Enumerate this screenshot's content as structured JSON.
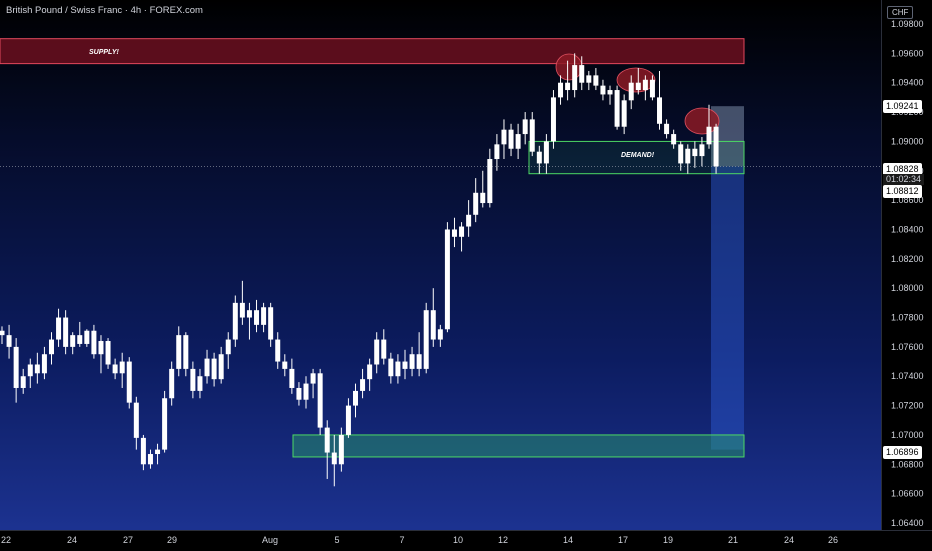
{
  "header": {
    "symbol_title": "British Pound / Swiss Franc · 4h · FOREX.com",
    "currency": "CHF"
  },
  "colors": {
    "candle_body": "#ffffff",
    "supply_fill": "#6b0f1e",
    "supply_border": "#e0485c",
    "demand_border": "#4cd964",
    "highlight_circle": "#8b1a24"
  },
  "annotations": {
    "supply_label": "SUPPLY!",
    "demand_label": "DEMAND!"
  },
  "price_tags": {
    "top_price": "1.09241",
    "current_price": "1.08828",
    "countdown": "01:02:34",
    "low_price": "1.08812",
    "target_price": "1.06896"
  },
  "chart_data": {
    "type": "candlestick",
    "y_axis_ticks": [
      "1.09800",
      "1.09600",
      "1.09400",
      "1.09200",
      "1.09000",
      "1.08800",
      "1.08600",
      "1.08400",
      "1.08200",
      "1.08000",
      "1.07800",
      "1.07600",
      "1.07400",
      "1.07200",
      "1.07000",
      "1.06800",
      "1.06600",
      "1.06400"
    ],
    "x_axis_ticks": [
      "22",
      "24",
      "27",
      "29",
      "Aug",
      "5",
      "7",
      "10",
      "12",
      "14",
      "17",
      "19",
      "21",
      "24",
      "26"
    ],
    "ylim": [
      1.0635,
      1.0995
    ],
    "zones": {
      "supply": [
        1.0953,
        1.097
      ],
      "demand": [
        1.0878,
        1.09
      ],
      "lower_demand": [
        1.0685,
        1.07
      ]
    },
    "short_position": {
      "entry": 1.0883,
      "stop": 1.0924,
      "target": 1.069
    },
    "candles": [
      [
        1.0771,
        1.0774,
        1.0762,
        1.0768
      ],
      [
        1.0768,
        1.0775,
        1.0752,
        1.076
      ],
      [
        1.076,
        1.0766,
        1.0722,
        1.0732
      ],
      [
        1.0732,
        1.0745,
        1.0728,
        1.074
      ],
      [
        1.074,
        1.0752,
        1.0732,
        1.0748
      ],
      [
        1.0748,
        1.0756,
        1.0735,
        1.0742
      ],
      [
        1.0742,
        1.076,
        1.0738,
        1.0755
      ],
      [
        1.0755,
        1.077,
        1.0748,
        1.0765
      ],
      [
        1.0765,
        1.0786,
        1.076,
        1.078
      ],
      [
        1.078,
        1.0785,
        1.0755,
        1.076
      ],
      [
        1.076,
        1.077,
        1.0755,
        1.0768
      ],
      [
        1.0768,
        1.0777,
        1.076,
        1.0762
      ],
      [
        1.0762,
        1.0772,
        1.076,
        1.0771
      ],
      [
        1.0771,
        1.0775,
        1.0752,
        1.0755
      ],
      [
        1.0755,
        1.0768,
        1.0742,
        1.0764
      ],
      [
        1.0764,
        1.0766,
        1.0745,
        1.0748
      ],
      [
        1.0748,
        1.0752,
        1.0738,
        1.0742
      ],
      [
        1.0742,
        1.0756,
        1.0732,
        1.075
      ],
      [
        1.075,
        1.0753,
        1.0718,
        1.0722
      ],
      [
        1.0722,
        1.0726,
        1.069,
        1.0698
      ],
      [
        1.0698,
        1.07,
        1.0676,
        1.068
      ],
      [
        1.068,
        1.069,
        1.0677,
        1.0687
      ],
      [
        1.0687,
        1.0694,
        1.068,
        1.069
      ],
      [
        1.069,
        1.073,
        1.0688,
        1.0725
      ],
      [
        1.0725,
        1.075,
        1.072,
        1.0745
      ],
      [
        1.0745,
        1.0774,
        1.074,
        1.0768
      ],
      [
        1.0768,
        1.077,
        1.074,
        1.0745
      ],
      [
        1.0745,
        1.075,
        1.0725,
        1.073
      ],
      [
        1.073,
        1.0745,
        1.0725,
        1.074
      ],
      [
        1.074,
        1.0758,
        1.0735,
        1.0752
      ],
      [
        1.0752,
        1.0756,
        1.0733,
        1.0738
      ],
      [
        1.0738,
        1.076,
        1.0735,
        1.0755
      ],
      [
        1.0755,
        1.077,
        1.0745,
        1.0765
      ],
      [
        1.0765,
        1.0795,
        1.076,
        1.079
      ],
      [
        1.079,
        1.0805,
        1.0775,
        1.078
      ],
      [
        1.078,
        1.079,
        1.0765,
        1.0785
      ],
      [
        1.0785,
        1.0792,
        1.077,
        1.0775
      ],
      [
        1.0775,
        1.079,
        1.077,
        1.0787
      ],
      [
        1.0787,
        1.079,
        1.076,
        1.0765
      ],
      [
        1.0765,
        1.077,
        1.0745,
        1.075
      ],
      [
        1.075,
        1.0755,
        1.074,
        1.0745
      ],
      [
        1.0745,
        1.0752,
        1.0728,
        1.0732
      ],
      [
        1.0732,
        1.0736,
        1.072,
        1.0724
      ],
      [
        1.0724,
        1.074,
        1.0718,
        1.0735
      ],
      [
        1.0735,
        1.0745,
        1.0725,
        1.0742
      ],
      [
        1.0742,
        1.0745,
        1.07,
        1.0705
      ],
      [
        1.0705,
        1.071,
        1.067,
        1.0688
      ],
      [
        1.0688,
        1.07,
        1.0665,
        1.068
      ],
      [
        1.068,
        1.0705,
        1.0675,
        1.07
      ],
      [
        1.07,
        1.0725,
        1.0698,
        1.072
      ],
      [
        1.072,
        1.0735,
        1.0712,
        1.073
      ],
      [
        1.073,
        1.0745,
        1.0725,
        1.0738
      ],
      [
        1.0738,
        1.0752,
        1.073,
        1.0748
      ],
      [
        1.0748,
        1.077,
        1.0742,
        1.0765
      ],
      [
        1.0765,
        1.0772,
        1.0748,
        1.0752
      ],
      [
        1.0752,
        1.0756,
        1.0735,
        1.074
      ],
      [
        1.074,
        1.0755,
        1.0735,
        1.075
      ],
      [
        1.075,
        1.0758,
        1.0738,
        1.0745
      ],
      [
        1.0745,
        1.076,
        1.074,
        1.0755
      ],
      [
        1.0755,
        1.077,
        1.074,
        1.0745
      ],
      [
        1.0745,
        1.079,
        1.0742,
        1.0785
      ],
      [
        1.0785,
        1.08,
        1.076,
        1.0765
      ],
      [
        1.0765,
        1.0775,
        1.076,
        1.0772
      ],
      [
        1.0772,
        1.0845,
        1.077,
        1.084
      ],
      [
        1.084,
        1.0848,
        1.0828,
        1.0835
      ],
      [
        1.0835,
        1.0845,
        1.0825,
        1.0842
      ],
      [
        1.0842,
        1.086,
        1.0835,
        1.085
      ],
      [
        1.085,
        1.0875,
        1.0845,
        1.0865
      ],
      [
        1.0865,
        1.088,
        1.0855,
        1.0858
      ],
      [
        1.0858,
        1.0895,
        1.0855,
        1.0888
      ],
      [
        1.0888,
        1.0905,
        1.088,
        1.0898
      ],
      [
        1.0898,
        1.0915,
        1.0888,
        1.0908
      ],
      [
        1.0908,
        1.0912,
        1.089,
        1.0895
      ],
      [
        1.0895,
        1.0912,
        1.0888,
        1.0905
      ],
      [
        1.0905,
        1.092,
        1.0898,
        1.0915
      ],
      [
        1.0915,
        1.092,
        1.089,
        1.0893
      ],
      [
        1.0893,
        1.0897,
        1.0878,
        1.0885
      ],
      [
        1.0885,
        1.0905,
        1.0878,
        1.09
      ],
      [
        1.09,
        1.0935,
        1.0895,
        1.093
      ],
      [
        1.093,
        1.0945,
        1.0925,
        1.094
      ],
      [
        1.094,
        1.0955,
        1.0928,
        1.0935
      ],
      [
        1.0935,
        1.096,
        1.093,
        1.0952
      ],
      [
        1.0952,
        1.0958,
        1.0935,
        1.094
      ],
      [
        1.094,
        1.0948,
        1.0935,
        1.0945
      ],
      [
        1.0945,
        1.095,
        1.0935,
        1.0938
      ],
      [
        1.0938,
        1.0942,
        1.0928,
        1.0932
      ],
      [
        1.0932,
        1.0938,
        1.0925,
        1.0935
      ],
      [
        1.0935,
        1.0938,
        1.0908,
        1.091
      ],
      [
        1.091,
        1.0932,
        1.0905,
        1.0928
      ],
      [
        1.0928,
        1.0945,
        1.0922,
        1.094
      ],
      [
        1.094,
        1.095,
        1.0932,
        1.0935
      ],
      [
        1.0935,
        1.0945,
        1.0928,
        1.0942
      ],
      [
        1.0942,
        1.0945,
        1.0928,
        1.093
      ],
      [
        1.093,
        1.0948,
        1.0908,
        1.0912
      ],
      [
        1.0912,
        1.0915,
        1.0902,
        1.0905
      ],
      [
        1.0905,
        1.0908,
        1.0895,
        1.0898
      ],
      [
        1.0898,
        1.09,
        1.088,
        1.0885
      ],
      [
        1.0885,
        1.0898,
        1.0878,
        1.0895
      ],
      [
        1.0895,
        1.09,
        1.0882,
        1.089
      ],
      [
        1.089,
        1.0903,
        1.0883,
        1.0898
      ],
      [
        1.0898,
        1.0925,
        1.0895,
        1.091
      ],
      [
        1.091,
        1.0912,
        1.0878,
        1.0883
      ]
    ]
  }
}
